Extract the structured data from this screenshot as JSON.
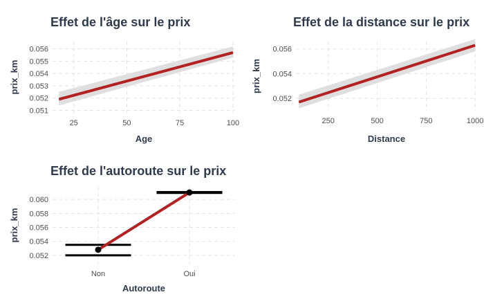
{
  "chart_data": [
    {
      "type": "line",
      "title": "Effet de l'âge sur le prix",
      "xlabel": "Age",
      "ylabel": "prix_km",
      "xlim": [
        15,
        101
      ],
      "ylim": [
        0.0508,
        0.0566
      ],
      "xticks": [
        25,
        50,
        75,
        100
      ],
      "yticks": [
        0.051,
        0.052,
        0.053,
        0.054,
        0.055,
        0.056
      ],
      "ytick_labels": [
        "0.051",
        "0.052",
        "0.053",
        "0.054",
        "0.055",
        "0.056"
      ],
      "grid": true,
      "series": [
        {
          "x": [
            18,
            100
          ],
          "y": [
            0.0519,
            0.0557
          ],
          "lower": [
            0.0514,
            0.0553
          ],
          "upper": [
            0.0525,
            0.0562
          ]
        }
      ]
    },
    {
      "type": "line",
      "title": "Effet de la distance sur le prix",
      "xlabel": "Distance",
      "ylabel": "prix_km",
      "xlim": [
        85,
        1010
      ],
      "ylim": [
        0.051,
        0.0566
      ],
      "xticks": [
        250,
        500,
        750,
        1000
      ],
      "yticks": [
        0.052,
        0.054,
        0.056
      ],
      "ytick_labels": [
        "0.052",
        "0.054",
        "0.056"
      ],
      "grid": true,
      "series": [
        {
          "x": [
            100,
            1000
          ],
          "y": [
            0.0517,
            0.0563
          ],
          "lower": [
            0.0512,
            0.0558
          ],
          "upper": [
            0.0523,
            0.0568
          ]
        }
      ]
    },
    {
      "type": "line",
      "title": "Effet de l'autoroute sur le prix",
      "xlabel": "Autoroute",
      "ylabel": "prix_km",
      "categories": [
        "Non",
        "Oui"
      ],
      "ylim": [
        0.0508,
        0.0618
      ],
      "yticks": [
        0.052,
        0.054,
        0.056,
        0.058,
        0.06
      ],
      "ytick_labels": [
        "0.052",
        "0.054",
        "0.056",
        "0.058",
        "0.060"
      ],
      "grid": true,
      "series": [
        {
          "values": [
            0.0528,
            0.061
          ],
          "lower": [
            0.052,
            0.061
          ],
          "upper": [
            0.0535,
            0.061
          ]
        }
      ]
    }
  ],
  "colors": {
    "line": "#b22222",
    "ribbon": "#d9d9d9",
    "errorbar": "#000000",
    "point": "#000000"
  }
}
